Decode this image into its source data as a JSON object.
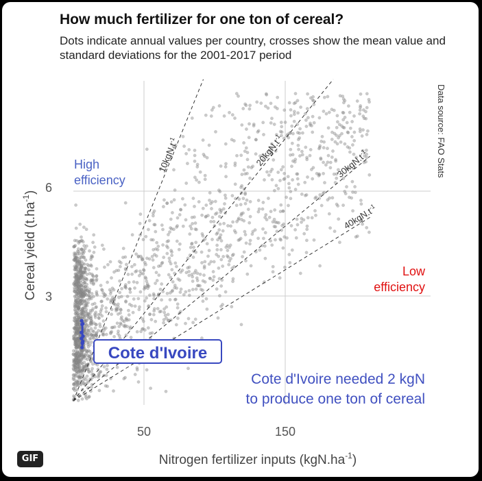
{
  "header": {
    "title": "How much fertilizer for one ton of cereal?",
    "subtitle": "Dots indicate annual values per country, crosses show the mean value and standard deviations for the 2001-2017 period"
  },
  "source_text": "Data source: FAO Stats",
  "badge": "GIF",
  "annotations": {
    "high_line1": "High",
    "high_line2": "efficiency",
    "low_line1": "Low",
    "low_line2": "efficiency",
    "highlight_label": "Cote d'Ivoire",
    "note_line1": "Cote d'Ivoire needed 2 kgN",
    "note_line2": "to produce one ton of cereal"
  },
  "colors": {
    "high_efficiency": "#4a62c4",
    "low_efficiency": "#e01010",
    "highlight": "#3848c0",
    "dots": "#8a8a8a",
    "grid": "#cccccc"
  },
  "chart_data": {
    "type": "scatter",
    "title": "How much fertilizer for one ton of cereal?",
    "xlabel": "Nitrogen fertilizer inputs (kgN.ha",
    "xlabel_sup": "-1",
    "xlabel_end": ")",
    "ylabel": "Cereal yield (t.ha",
    "ylabel_sup": "-1",
    "ylabel_end": ")",
    "x_ticks": [
      50,
      150
    ],
    "y_ticks": [
      3,
      6
    ],
    "xlim": [
      0,
      210
    ],
    "ylim": [
      0,
      9
    ],
    "grid": true,
    "reference_lines": [
      {
        "label": "10kgN.t",
        "sup": "-1",
        "slope_kgN_per_t": 10
      },
      {
        "label": "20kgN.t",
        "sup": "-1",
        "slope_kgN_per_t": 20
      },
      {
        "label": "30kgN.t",
        "sup": "-1",
        "slope_kgN_per_t": 30
      },
      {
        "label": "40kgN.t",
        "sup": "-1",
        "slope_kgN_per_t": 40
      }
    ],
    "highlight": {
      "country": "Cote d'Ivoire",
      "x_mean": 1.5,
      "y_mean": 1.9,
      "y_sd": 0.4,
      "kgN_per_t": 2
    },
    "point_count": 2000
  }
}
